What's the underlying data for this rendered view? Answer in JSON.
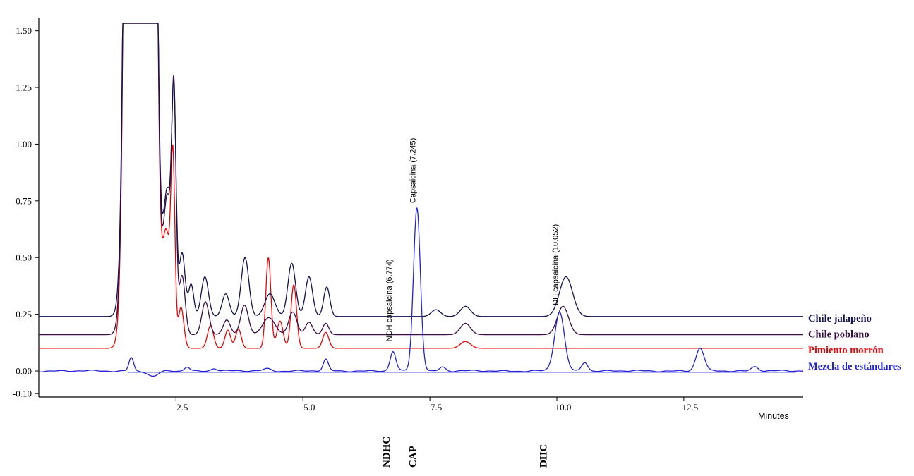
{
  "chart_data": {
    "type": "line",
    "title": "",
    "xlabel": "Minutes",
    "ylabel": "",
    "x_range": [
      -0.2,
      14.85
    ],
    "y_range": [
      -0.115,
      1.558
    ],
    "clip_top": 1.533,
    "grid": false,
    "legend_position": "right",
    "x_ticks": [
      "2.5",
      "5.0",
      "7.5",
      "10.0",
      "12.5"
    ],
    "x_tick_values": [
      2.5,
      5.0,
      7.5,
      10.0,
      12.5
    ],
    "y_ticks": [
      "-0.10",
      "0.00",
      "0.25",
      "0.50",
      "0.75",
      "1.00",
      "1.25",
      "1.50"
    ],
    "y_tick_values": [
      -0.1,
      0.0,
      0.25,
      0.5,
      0.75,
      1.0,
      1.25,
      1.5
    ],
    "series": [
      {
        "id": "jalapeno",
        "name": "Chile jalapeño",
        "color": "#12124f",
        "baseline": 0.24,
        "label_dy": 7,
        "peaks": [
          [
            1.8,
            0.13,
            50
          ],
          [
            2.33,
            0.08,
            0.55
          ],
          [
            2.46,
            0.042,
            0.88
          ],
          [
            2.62,
            0.06,
            0.28
          ],
          [
            2.8,
            0.05,
            0.14
          ],
          [
            3.07,
            0.07,
            0.175
          ],
          [
            3.48,
            0.07,
            0.1
          ],
          [
            3.86,
            0.075,
            0.26
          ],
          [
            4.35,
            0.1,
            0.1
          ],
          [
            4.78,
            0.075,
            0.235
          ],
          [
            5.12,
            0.07,
            0.175
          ],
          [
            5.47,
            0.06,
            0.13
          ],
          [
            7.62,
            0.09,
            0.03
          ],
          [
            8.2,
            0.1,
            0.045
          ],
          [
            10.18,
            0.13,
            0.175
          ]
        ]
      },
      {
        "id": "poblano",
        "name": "Chile poblano",
        "color": "#3a0d45",
        "baseline": 0.16,
        "label_dy": 4,
        "peaks": [
          [
            1.8,
            0.13,
            50
          ],
          [
            2.33,
            0.08,
            0.6
          ],
          [
            2.46,
            0.042,
            0.97
          ],
          [
            2.62,
            0.06,
            0.26
          ],
          [
            3.08,
            0.07,
            0.145
          ],
          [
            3.5,
            0.07,
            0.065
          ],
          [
            3.85,
            0.075,
            0.13
          ],
          [
            4.33,
            0.12,
            0.075
          ],
          [
            4.8,
            0.08,
            0.1
          ],
          [
            5.12,
            0.07,
            0.055
          ],
          [
            5.45,
            0.06,
            0.05
          ],
          [
            8.2,
            0.1,
            0.05
          ],
          [
            10.12,
            0.11,
            0.125
          ]
        ]
      },
      {
        "id": "morron",
        "name": "Pimiento morrón",
        "color": "#e80202",
        "baseline": 0.1,
        "label_dy": 7,
        "peaks": [
          [
            1.8,
            0.13,
            50
          ],
          [
            2.31,
            0.075,
            0.5
          ],
          [
            2.44,
            0.04,
            0.78
          ],
          [
            2.6,
            0.055,
            0.18
          ],
          [
            3.18,
            0.06,
            0.1
          ],
          [
            3.52,
            0.055,
            0.08
          ],
          [
            3.73,
            0.055,
            0.085
          ],
          [
            4.32,
            0.05,
            0.4
          ],
          [
            4.55,
            0.06,
            0.12
          ],
          [
            4.82,
            0.055,
            0.28
          ],
          [
            5.45,
            0.06,
            0.07
          ],
          [
            8.2,
            0.1,
            0.03
          ]
        ]
      },
      {
        "id": "estandares",
        "name": "Mezcla de estándares",
        "color": "#2222d6",
        "baseline": 0.0,
        "label_dy": -2,
        "noise": 0.004,
        "peaks": [
          [
            1.62,
            0.045,
            0.06
          ],
          [
            2.05,
            0.1,
            -0.025
          ],
          [
            2.72,
            0.05,
            0.018
          ],
          [
            3.25,
            0.06,
            0.012
          ],
          [
            4.3,
            0.08,
            0.01
          ],
          [
            5.45,
            0.05,
            0.05
          ],
          [
            6.774,
            0.055,
            0.085
          ],
          [
            7.245,
            0.068,
            0.72
          ],
          [
            7.75,
            0.06,
            0.018
          ],
          [
            10.052,
            0.095,
            0.26
          ],
          [
            10.55,
            0.06,
            0.04
          ],
          [
            12.82,
            0.08,
            0.1
          ],
          [
            13.9,
            0.07,
            0.02
          ]
        ]
      }
    ],
    "peak_annotations": [
      {
        "label": "NDH capsaicina (6.774)",
        "x": 6.774,
        "y_start": 0.13
      },
      {
        "label": "Capsaicina (7.245)",
        "x": 7.245,
        "y_start": 0.74
      },
      {
        "label": "DH capsaicina (10.052)",
        "x": 10.052,
        "y_start": 0.29
      }
    ],
    "compound_labels": [
      {
        "label": "NDHC",
        "x": 6.65
      },
      {
        "label": "CAP",
        "x": 7.17
      },
      {
        "label": "DHC",
        "x": 9.74
      }
    ],
    "integration_baseline": {
      "from": 1.55,
      "to": 14.7,
      "value": -0.006,
      "color": "#2222d6"
    }
  }
}
